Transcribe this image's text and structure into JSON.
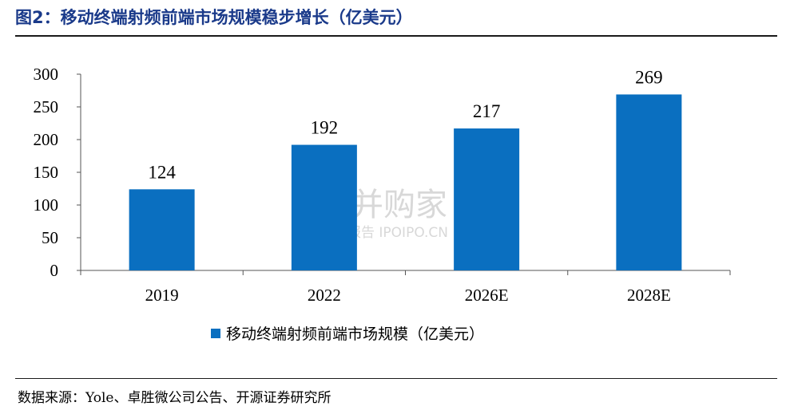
{
  "title": "图2：移动终端射频前端市场规模稳步增长（亿美元）",
  "source": "数据来源：Yole、卓胜微公司公告、开源证券研究所",
  "watermark": {
    "brand": "并购家",
    "sub": "行业报告 IPOIPO.CN"
  },
  "colors": {
    "bar": "#0a6fc0",
    "title": "#1a3a8a"
  },
  "chart_data": {
    "type": "bar",
    "categories": [
      "2019",
      "2022",
      "2026E",
      "2028E"
    ],
    "series": [
      {
        "name": "移动终端射频前端市场规模（亿美元）",
        "values": [
          124,
          192,
          217,
          269
        ]
      }
    ],
    "data_labels": [
      "124",
      "192",
      "217",
      "269"
    ],
    "ylim": [
      0,
      300
    ],
    "yticks": [
      "0",
      "50",
      "100",
      "150",
      "200",
      "250",
      "300"
    ],
    "grid": false,
    "legend_position": "bottom"
  }
}
